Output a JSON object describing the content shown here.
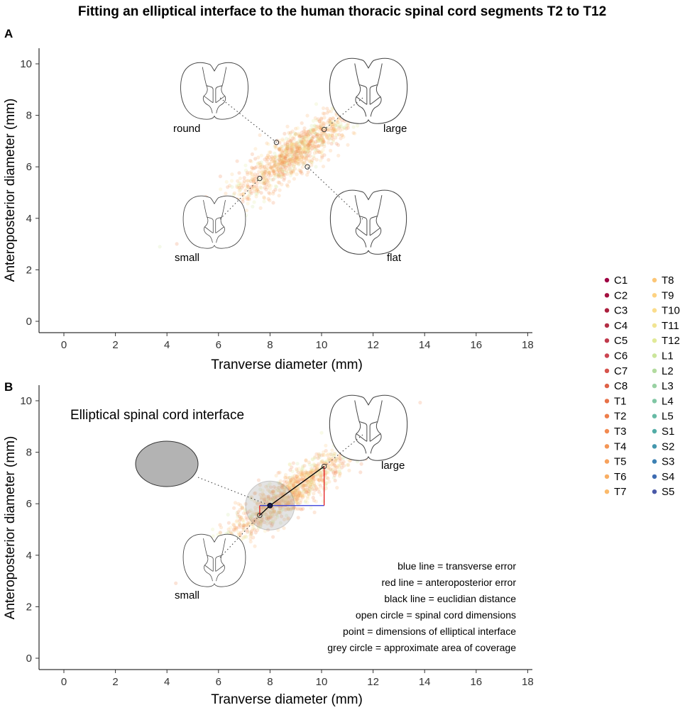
{
  "chart_data": {
    "title": "Fitting an elliptical interface to the human thoracic spinal cord segments T2 to T12",
    "type": "scatter",
    "x_ticks": [
      0,
      2,
      4,
      6,
      8,
      10,
      12,
      14,
      16,
      18
    ],
    "y_ticks": [
      0,
      2,
      4,
      6,
      8,
      10
    ],
    "colors": {
      "segments": [
        "#9e0142",
        "#a4103f",
        "#ab1f3d",
        "#b32e45",
        "#c0394b",
        "#cc4551",
        "#d6534c",
        "#df6248",
        "#e77148",
        "#ee7e4b",
        "#f28a50",
        "#f49656",
        "#f7a25d",
        "#f9ae63",
        "#fbba6b",
        "#fcc676",
        "#fdd282",
        "#fbdd8c",
        "#f1e493",
        "#e1ea98",
        "#cbe59b",
        "#b2db9f",
        "#99d1a3",
        "#80c6a4",
        "#67baa5",
        "#52aca6",
        "#4497ad",
        "#3d81b3",
        "#3e6bb1",
        "#4a59a8"
      ],
      "cloud": [
        "#ee7e4b",
        "#f28a50",
        "#f49656",
        "#f9ae63",
        "#fcc676",
        "#fbdd8c",
        "#e1ea98",
        "#cbe59b",
        "#f9ae63"
      ],
      "blue_line": "#2b35d6",
      "red_line": "#e31a1c",
      "grey_circle": "#9a9a9a",
      "ellipse_fill": "#b3b3b3"
    },
    "legend": {
      "entries": [
        "C1",
        "C2",
        "C3",
        "C4",
        "C5",
        "C6",
        "C7",
        "C8",
        "T1",
        "T2",
        "T3",
        "T4",
        "T5",
        "T6",
        "T7",
        "T8",
        "T9",
        "T10",
        "T11",
        "T12",
        "L1",
        "L2",
        "L3",
        "L4",
        "L5",
        "S1",
        "S2",
        "S3",
        "S4",
        "S5"
      ]
    },
    "panels": [
      {
        "id": "A",
        "xlabel": "Tranverse diameter (mm)",
        "ylabel": "Anteroposterior diameter (mm)",
        "xlim": [
          -1,
          18.7
        ],
        "ylim": [
          -0.3,
          10.5
        ],
        "reference_points": [
          {
            "name": "round",
            "x": 8.25,
            "y": 6.95
          },
          {
            "name": "large",
            "x": 10.1,
            "y": 7.45
          },
          {
            "name": "small",
            "x": 7.6,
            "y": 5.55
          },
          {
            "name": "flat",
            "x": 9.45,
            "y": 6.0
          }
        ]
      },
      {
        "id": "B",
        "xlabel": "Tranverse diameter (mm)",
        "ylabel": "Anteroposterior diameter (mm)",
        "xlim": [
          -1,
          18.7
        ],
        "ylim": [
          -0.3,
          10.5
        ],
        "subtitle": "Elliptical spinal cord interface",
        "reference_points": [
          {
            "name": "large",
            "x": 10.1,
            "y": 7.45
          },
          {
            "name": "small",
            "x": 7.6,
            "y": 5.55
          }
        ],
        "interface_point": {
          "x": 8.0,
          "y": 5.93
        },
        "coverage_radius": 0.95,
        "annotations": [
          "blue line = transverse error",
          "red line = anteroposterior error",
          "black line = euclidian distance",
          "open circle = spinal cord dimensions",
          "point = dimensions of elliptical interface",
          "grey circle = approximate area of coverage"
        ]
      }
    ]
  }
}
